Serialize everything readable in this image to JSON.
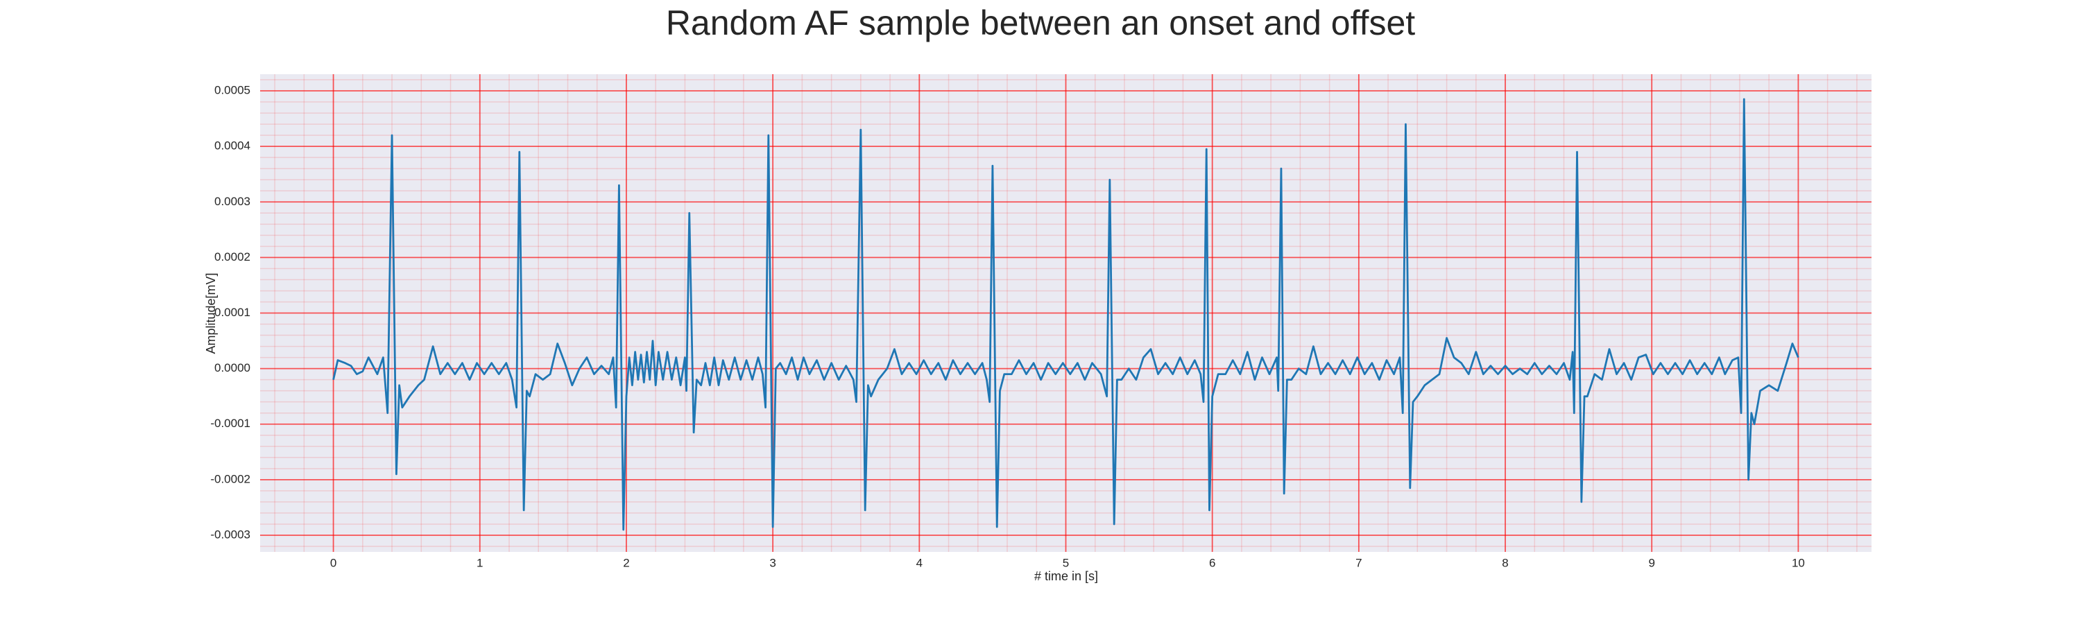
{
  "chart_data": {
    "type": "line",
    "title": "Random AF sample between an onset and offset",
    "xlabel": "# time in [s]",
    "ylabel": "Amplitude[mV]",
    "color": "#1f77b4",
    "grid": true,
    "minor_grid": true,
    "xlim": [
      -0.5,
      10.5
    ],
    "ylim": [
      -0.00033,
      0.00053
    ],
    "xticks": [
      0,
      1,
      2,
      3,
      4,
      5,
      6,
      7,
      8,
      9,
      10
    ],
    "yticks": [
      -0.0003,
      -0.0002,
      -0.0001,
      {
        "value": 0,
        "label": "0.0000"
      },
      0.0001,
      0.0002,
      0.0003,
      0.0004,
      0.0005
    ],
    "x": [
      0,
      0.03,
      0.08,
      0.12,
      0.16,
      0.2,
      0.24,
      0.3,
      0.34,
      0.37,
      0.4,
      0.43,
      0.45,
      0.47,
      0.52,
      0.58,
      0.62,
      0.68,
      0.73,
      0.78,
      0.83,
      0.88,
      0.93,
      0.98,
      1.03,
      1.08,
      1.13,
      1.18,
      1.22,
      1.25,
      1.27,
      1.3,
      1.32,
      1.34,
      1.38,
      1.43,
      1.48,
      1.53,
      1.58,
      1.63,
      1.68,
      1.73,
      1.78,
      1.83,
      1.88,
      1.91,
      1.93,
      1.95,
      1.98,
      2,
      2.02,
      2.04,
      2.06,
      2.08,
      2.1,
      2.12,
      2.14,
      2.16,
      2.18,
      2.2,
      2.22,
      2.25,
      2.28,
      2.31,
      2.34,
      2.37,
      2.4,
      2.41,
      2.43,
      2.46,
      2.48,
      2.51,
      2.54,
      2.57,
      2.6,
      2.63,
      2.66,
      2.7,
      2.74,
      2.78,
      2.82,
      2.86,
      2.9,
      2.93,
      2.95,
      2.97,
      3,
      3.02,
      3.05,
      3.09,
      3.13,
      3.17,
      3.21,
      3.25,
      3.3,
      3.35,
      3.4,
      3.45,
      3.5,
      3.55,
      3.57,
      3.6,
      3.63,
      3.65,
      3.67,
      3.72,
      3.78,
      3.83,
      3.88,
      3.93,
      3.98,
      4.03,
      4.08,
      4.13,
      4.18,
      4.23,
      4.28,
      4.33,
      4.38,
      4.43,
      4.46,
      4.48,
      4.5,
      4.53,
      4.55,
      4.58,
      4.63,
      4.68,
      4.73,
      4.78,
      4.83,
      4.88,
      4.93,
      4.98,
      5.03,
      5.08,
      5.13,
      5.18,
      5.24,
      5.28,
      5.3,
      5.33,
      5.35,
      5.38,
      5.43,
      5.48,
      5.53,
      5.58,
      5.63,
      5.68,
      5.73,
      5.78,
      5.83,
      5.88,
      5.92,
      5.94,
      5.96,
      5.98,
      6,
      6.04,
      6.09,
      6.14,
      6.19,
      6.24,
      6.29,
      6.34,
      6.39,
      6.44,
      6.45,
      6.47,
      6.49,
      6.51,
      6.54,
      6.59,
      6.64,
      6.69,
      6.74,
      6.79,
      6.84,
      6.89,
      6.94,
      6.99,
      7.04,
      7.09,
      7.14,
      7.19,
      7.24,
      7.28,
      7.3,
      7.32,
      7.35,
      7.37,
      7.4,
      7.45,
      7.5,
      7.55,
      7.6,
      7.65,
      7.7,
      7.75,
      7.8,
      7.85,
      7.9,
      7.95,
      8,
      8.05,
      8.1,
      8.15,
      8.2,
      8.25,
      8.3,
      8.35,
      8.4,
      8.44,
      8.46,
      8.47,
      8.49,
      8.52,
      8.54,
      8.56,
      8.61,
      8.66,
      8.71,
      8.76,
      8.81,
      8.86,
      8.91,
      8.96,
      9.01,
      9.06,
      9.11,
      9.16,
      9.21,
      9.26,
      9.31,
      9.36,
      9.41,
      9.46,
      9.5,
      9.55,
      9.59,
      9.61,
      9.63,
      9.66,
      9.68,
      9.7,
      9.74,
      9.8,
      9.86,
      9.92,
      9.96,
      10
    ],
    "values": [
      -2e-05,
      1.5e-05,
      1e-05,
      5e-06,
      -1e-05,
      -5e-06,
      2e-05,
      -1e-05,
      2e-05,
      -8e-05,
      0.00042,
      -0.00019,
      -3e-05,
      -7e-05,
      -5e-05,
      -3e-05,
      -2e-05,
      4e-05,
      -1e-05,
      1e-05,
      -1e-05,
      1e-05,
      -2e-05,
      1e-05,
      -1e-05,
      1e-05,
      -1e-05,
      1e-05,
      -2e-05,
      -7e-05,
      0.00039,
      -0.000255,
      -4e-05,
      -5e-05,
      -1e-05,
      -2e-05,
      -1e-05,
      4.5e-05,
      1e-05,
      -3e-05,
      0,
      2e-05,
      -1e-05,
      5e-06,
      -1e-05,
      2e-05,
      -7e-05,
      0.00033,
      -0.00029,
      -5e-05,
      2e-05,
      -3e-05,
      3e-05,
      -2e-05,
      2.5e-05,
      -2.5e-05,
      3e-05,
      -2e-05,
      5e-05,
      -3e-05,
      3e-05,
      -2e-05,
      3e-05,
      -2e-05,
      2e-05,
      -3e-05,
      2e-05,
      -4e-05,
      0.00028,
      -0.000115,
      -2e-05,
      -3e-05,
      1e-05,
      -3e-05,
      2e-05,
      -3e-05,
      1.5e-05,
      -2e-05,
      2e-05,
      -2e-05,
      1.5e-05,
      -2e-05,
      2e-05,
      -1e-05,
      -7e-05,
      0.00042,
      -0.000285,
      0,
      1e-05,
      -1e-05,
      2e-05,
      -2e-05,
      2e-05,
      -1e-05,
      1.5e-05,
      -2e-05,
      1e-05,
      -2e-05,
      5e-06,
      -2e-05,
      -6e-05,
      0.00043,
      -0.000255,
      -3e-05,
      -5e-05,
      -2e-05,
      0,
      3.5e-05,
      -1e-05,
      1e-05,
      -1e-05,
      1.5e-05,
      -1e-05,
      1e-05,
      -2e-05,
      1.5e-05,
      -1e-05,
      1e-05,
      -1e-05,
      1e-05,
      -2e-05,
      -6e-05,
      0.000365,
      -0.000285,
      -4e-05,
      -1e-05,
      -1e-05,
      1.5e-05,
      -1e-05,
      1e-05,
      -2e-05,
      1e-05,
      -1e-05,
      1e-05,
      -1e-05,
      1e-05,
      -2e-05,
      1e-05,
      -1e-05,
      -5e-05,
      0.00034,
      -0.00028,
      -2e-05,
      -2e-05,
      0,
      -2e-05,
      2e-05,
      3.5e-05,
      -1e-05,
      1e-05,
      -1e-05,
      2e-05,
      -1e-05,
      1.5e-05,
      -1e-05,
      -6e-05,
      0.000395,
      -0.000255,
      -5e-05,
      -1e-05,
      -1e-05,
      1.5e-05,
      -1e-05,
      3e-05,
      -2e-05,
      2e-05,
      -1e-05,
      2e-05,
      -4e-05,
      0.00036,
      -0.000225,
      -2e-05,
      -2e-05,
      0,
      -1e-05,
      4e-05,
      -1e-05,
      1e-05,
      -1e-05,
      1.5e-05,
      -1e-05,
      2e-05,
      -1e-05,
      1e-05,
      -2e-05,
      1.5e-05,
      -1e-05,
      2e-05,
      -8e-05,
      0.00044,
      -0.000215,
      -6e-05,
      -5e-05,
      -3e-05,
      -2e-05,
      -1e-05,
      5.5e-05,
      2e-05,
      1e-05,
      -1e-05,
      3e-05,
      -1e-05,
      5e-06,
      -1e-05,
      5e-06,
      -1e-05,
      0,
      -1e-05,
      1e-05,
      -1e-05,
      5e-06,
      -1e-05,
      1e-05,
      -2e-05,
      3e-05,
      -8e-05,
      0.00039,
      -0.00024,
      -5e-05,
      -5e-05,
      -1e-05,
      -2e-05,
      3.5e-05,
      -1e-05,
      1e-05,
      -2e-05,
      2e-05,
      2.5e-05,
      -1e-05,
      1e-05,
      -1e-05,
      1e-05,
      -1e-05,
      1.5e-05,
      -1e-05,
      1e-05,
      -1e-05,
      2e-05,
      -1e-05,
      1.5e-05,
      2e-05,
      -8e-05,
      0.000485,
      -0.0002,
      -8e-05,
      -0.0001,
      -4e-05,
      -3e-05,
      -4e-05,
      1e-05,
      4.5e-05,
      2e-05
    ]
  }
}
